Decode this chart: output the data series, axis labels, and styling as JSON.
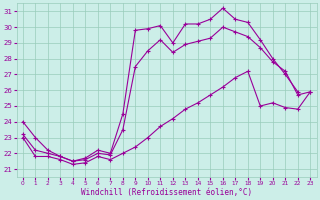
{
  "xlabel": "Windchill (Refroidissement éolien,°C)",
  "bg_color": "#cceee8",
  "grid_color": "#99ccbb",
  "line_color": "#990099",
  "xlim_min": -0.5,
  "xlim_max": 23.5,
  "ylim_min": 20.5,
  "ylim_max": 31.5,
  "yticks": [
    21,
    22,
    23,
    24,
    25,
    26,
    27,
    28,
    29,
    30,
    31
  ],
  "xticks": [
    0,
    1,
    2,
    3,
    4,
    5,
    6,
    7,
    8,
    9,
    10,
    11,
    12,
    13,
    14,
    15,
    16,
    17,
    18,
    19,
    20,
    21,
    22,
    23
  ],
  "s1_x": [
    0,
    1,
    2,
    3,
    4,
    5,
    6,
    7,
    8,
    9,
    10,
    11,
    12,
    13,
    14,
    15,
    16,
    17,
    18,
    19,
    20,
    21,
    22
  ],
  "s1_y": [
    24.0,
    23.0,
    22.2,
    21.8,
    21.5,
    21.7,
    22.2,
    22.0,
    24.5,
    29.8,
    29.9,
    30.1,
    29.0,
    30.2,
    30.2,
    30.5,
    31.2,
    30.5,
    30.3,
    29.2,
    28.0,
    27.0,
    25.9
  ],
  "s2_x": [
    0,
    1,
    2,
    3,
    4,
    5,
    6,
    7,
    8,
    9,
    10,
    11,
    12,
    13,
    14,
    15,
    16,
    17,
    18,
    19,
    20,
    21,
    22,
    23
  ],
  "s2_y": [
    23.2,
    22.2,
    22.0,
    21.8,
    21.5,
    21.6,
    22.0,
    21.9,
    23.5,
    27.5,
    28.5,
    29.2,
    28.4,
    28.9,
    29.1,
    29.3,
    30.0,
    29.7,
    29.4,
    28.7,
    27.8,
    27.2,
    25.7,
    25.9
  ],
  "s3_x": [
    0,
    1,
    2,
    3,
    4,
    5,
    6,
    7,
    8,
    9,
    10,
    11,
    12,
    13,
    14,
    15,
    16,
    17,
    18,
    19,
    20,
    21,
    22,
    23
  ],
  "s3_y": [
    23.0,
    21.8,
    21.8,
    21.6,
    21.3,
    21.4,
    21.8,
    21.6,
    22.0,
    22.4,
    23.0,
    23.7,
    24.2,
    24.8,
    25.2,
    25.7,
    26.2,
    26.8,
    27.2,
    25.0,
    25.2,
    24.9,
    24.8,
    25.9
  ]
}
